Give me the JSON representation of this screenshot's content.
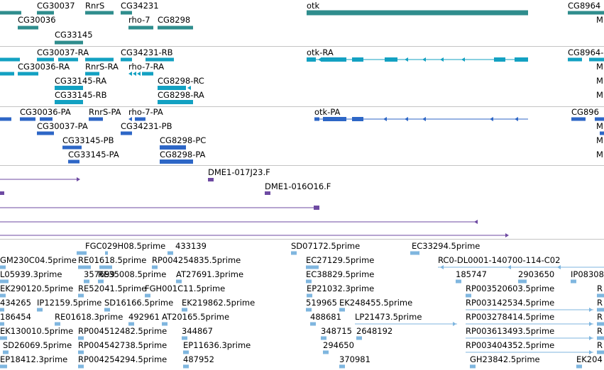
{
  "colors": {
    "gene": "#2f8d8d",
    "transcript": "#13a1c2",
    "protein": "#2d66c6",
    "clone": "#6e4aa2",
    "est": "#7fb6df",
    "separator": "#c4c4c4"
  },
  "tracks": {
    "genes": {
      "labels": [
        "CG30037",
        "RnrS",
        "CG34231",
        "otk",
        "CG8964",
        "CG30036",
        "rho-7",
        "CG8298",
        "CG33145",
        "M"
      ]
    },
    "transcripts": {
      "labels": [
        "CG30037-RA",
        "CG34231-RB",
        "otk-RA",
        "CG8964-",
        "CG30036-RA",
        "RnrS-RA",
        "rho-7-RA",
        "M",
        "CG33145-RA",
        "CG8298-RC",
        "M",
        "CG33145-RB",
        "CG8298-RA",
        "M"
      ]
    },
    "proteins": {
      "labels": [
        "CG30036-PA",
        "RnrS-PA",
        "rho-7-PA",
        "otk-PA",
        "CG896",
        "CG30037-PA",
        "CG34231-PB",
        "M",
        "CG33145-PB",
        "CG8298-PC",
        "M",
        "CG33145-PA",
        "CG8298-PA",
        "M"
      ]
    },
    "clones": {
      "labels": [
        "DME1-017J23.F",
        "DME1-016O16.F"
      ]
    },
    "ests": {
      "labels": [
        "FGC029H08.5prime",
        "433139",
        "SD07172.5prime",
        "EC33294.5prime",
        "GM230C04.5prime",
        "RE01618.5prime",
        "RP004254835.5prime",
        "EC27129.5prime",
        "RC0-DL0001-140700-114-C02",
        "L05939.3prime",
        "357699",
        "RE35008.5prime",
        "AT27691.3prime",
        "EC38829.5prime",
        "185747",
        "2903650",
        "IP08308",
        "EK290120.5prime",
        "RE52041.5prime",
        "FGH001C11.5prime",
        "EP21032.3prime",
        "RP003520603.5prime",
        "R",
        "434265",
        "IP12159.5prime",
        "SD16166.5prime",
        "EK219862.5prime",
        "519965",
        "EK248455.5prime",
        "RP003142534.5prime",
        "R",
        "186454",
        "RE01618.3prime",
        "492961",
        "AT20165.5prime",
        "488681",
        "LP21473.5prime",
        "RP003278414.5prime",
        "R",
        "EK130010.5prime",
        "RP004512482.5prime",
        "344867",
        "348715",
        "2648192",
        "RP003613493.5prime",
        "R",
        "SD26069.5prime",
        "RP004542738.5prime",
        "EP11636.3prime",
        "294650",
        "RP003404352.5prime",
        "R",
        "EP18412.3prime",
        "RP004254294.5prime",
        "487952",
        "370981",
        "GH23842.5prime",
        "EK204"
      ]
    }
  }
}
